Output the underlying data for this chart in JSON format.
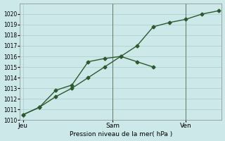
{
  "xlabel": "Pression niveau de la mer( hPa )",
  "bg_color": "#cce8e8",
  "grid_color": "#aacccc",
  "line_color": "#2d5a2d",
  "ylim": [
    1010,
    1021
  ],
  "yticks": [
    1010,
    1011,
    1012,
    1013,
    1014,
    1015,
    1016,
    1017,
    1018,
    1019,
    1020
  ],
  "xlim": [
    -0.2,
    12.2
  ],
  "xtick_positions": [
    0,
    5.5,
    10
  ],
  "xtick_labels": [
    "Jeu",
    "Sam",
    "Ven"
  ],
  "vline_positions": [
    5.5,
    10
  ],
  "series1_x": [
    0,
    1,
    2,
    3,
    4,
    5,
    6,
    7,
    8
  ],
  "series1_y": [
    1010.5,
    1011.2,
    1012.8,
    1013.3,
    1015.5,
    1015.8,
    1016.0,
    1015.5,
    1015.0
  ],
  "series2_x": [
    0,
    1,
    2,
    3,
    4,
    5,
    6,
    7,
    8,
    9,
    10,
    11,
    12
  ],
  "series2_y": [
    1010.5,
    1011.2,
    1012.2,
    1013.0,
    1014.0,
    1015.0,
    1016.0,
    1017.0,
    1018.8,
    1019.2,
    1019.5,
    1020.0,
    1020.3
  ],
  "marker": "D",
  "marker_size": 2.5,
  "line_width": 1.0
}
